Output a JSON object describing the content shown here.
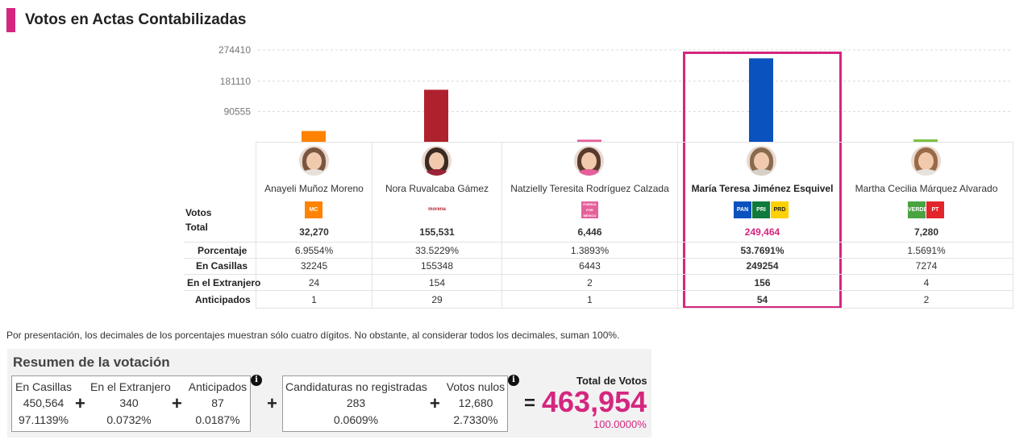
{
  "header": {
    "title": "Votos en Actas Contabilizadas"
  },
  "chart_data": {
    "type": "bar",
    "yticks": [
      90555,
      181110,
      274410
    ],
    "ytick_labels": [
      "90555",
      "181110",
      "274410"
    ],
    "ylim": [
      0,
      274410
    ],
    "categories": [
      "Anayeli Muñoz Moreno",
      "Nora Ruvalcaba Gámez",
      "Natzielly Teresita Rodríguez Calzada",
      "María Teresa Jiménez Esquivel",
      "Martha Cecilia Márquez Alvarado"
    ],
    "values": [
      32270,
      155531,
      6446,
      249464,
      7280
    ],
    "colors": [
      "#ff8200",
      "#b0212e",
      "#e5609b",
      "#0a52be",
      "#7dc142"
    ],
    "grid": true
  },
  "row_labels": {
    "votos": "Votos",
    "total": "Total",
    "porcentaje": "Porcentaje",
    "en_casillas": "En Casillas",
    "extranjero": "En el Extranjero",
    "anticipados": "Anticipados"
  },
  "candidates": [
    {
      "name": "Anayeli Muñoz Moreno",
      "party": "MC",
      "total": "32,270",
      "porcentaje": "6.9554%",
      "casillas": "32245",
      "extranjero": "24",
      "anticipados": "1"
    },
    {
      "name": "Nora Ruvalcaba Gámez",
      "party": "morena",
      "total": "155,531",
      "porcentaje": "33.5229%",
      "casillas": "155348",
      "extranjero": "154",
      "anticipados": "29"
    },
    {
      "name": "Natzielly Teresita Rodríguez Calzada",
      "party": "FUERZA POR MÉXICO",
      "total": "6,446",
      "porcentaje": "1.3893%",
      "casillas": "6443",
      "extranjero": "2",
      "anticipados": "1"
    },
    {
      "name": "María Teresa Jiménez Esquivel",
      "party": "PAN PRI PRD",
      "total": "249,464",
      "porcentaje": "53.7691%",
      "casillas": "249254",
      "extranjero": "156",
      "anticipados": "54"
    },
    {
      "name": "Martha Cecilia Márquez Alvarado",
      "party": "VERDE PT",
      "total": "7,280",
      "porcentaje": "1.5691%",
      "casillas": "7274",
      "extranjero": "4",
      "anticipados": "2"
    }
  ],
  "logos": {
    "mc": "MC",
    "morena": "morena",
    "fxm": "FUERZA POR MÉXICO",
    "pan": "PAN",
    "pri": "PRI",
    "prd": "PRD",
    "verde": "VERDE",
    "pt": "PT"
  },
  "note": "Por presentación, los decimales de los porcentajes muestran sólo cuatro dígitos. No obstante, al considerar todos los decimales, suman 100%.",
  "summary": {
    "title": "Resumen de la votación",
    "casillas_label": "En Casillas",
    "casillas_value": "450,564",
    "casillas_pct": "97.1139%",
    "extranjero_label": "En el Extranjero",
    "extranjero_value": "340",
    "extranjero_pct": "0.0732%",
    "anticipados_label": "Anticipados",
    "anticipados_value": "87",
    "anticipados_pct": "0.0187%",
    "no_reg_label": "Candidaturas no registradas",
    "no_reg_value": "283",
    "no_reg_pct": "0.0609%",
    "nulos_label": "Votos nulos",
    "nulos_value": "12,680",
    "nulos_pct": "2.7330%",
    "total_label": "Total de Votos",
    "total_value": "463,954",
    "total_pct": "100.0000%",
    "plus": "+",
    "equals": "=",
    "info": "i"
  }
}
